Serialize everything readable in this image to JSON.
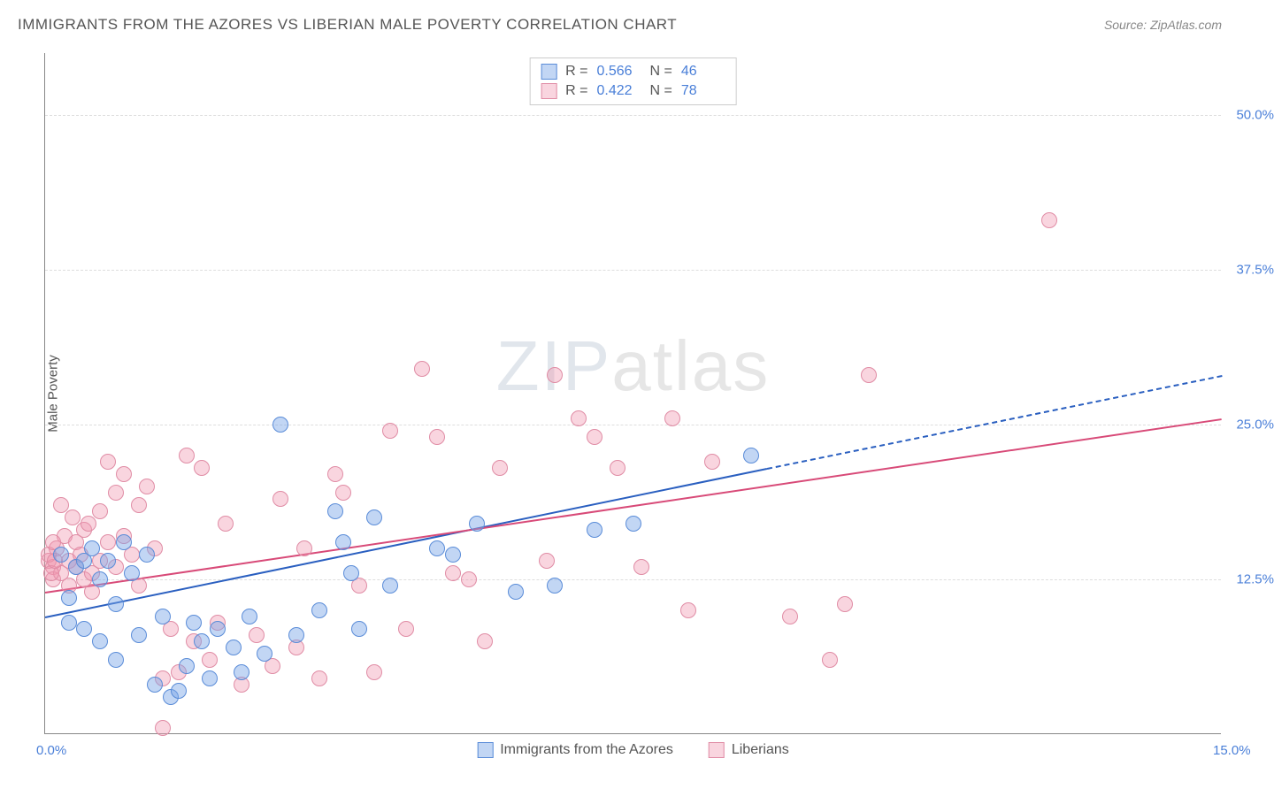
{
  "title": "IMMIGRANTS FROM THE AZORES VS LIBERIAN MALE POVERTY CORRELATION CHART",
  "source": "Source: ZipAtlas.com",
  "watermark_zip": "ZIP",
  "watermark_atlas": "atlas",
  "y_axis_label": "Male Poverty",
  "chart": {
    "type": "scatter",
    "xlim": [
      0,
      15
    ],
    "ylim": [
      0,
      55
    ],
    "x_ticks": [
      {
        "v": 0,
        "label": "0.0%"
      },
      {
        "v": 15,
        "label": "15.0%"
      }
    ],
    "y_ticks": [
      {
        "v": 12.5,
        "label": "12.5%"
      },
      {
        "v": 25.0,
        "label": "25.0%"
      },
      {
        "v": 37.5,
        "label": "37.5%"
      },
      {
        "v": 50.0,
        "label": "50.0%"
      }
    ],
    "background_color": "#ffffff",
    "grid_color": "#dddddd",
    "axis_color": "#888888",
    "tick_label_color": "#4a7fd8",
    "series": [
      {
        "name": "Immigrants from the Azores",
        "fill": "rgba(120,165,230,0.45)",
        "stroke": "#5a8cd8",
        "trend_color": "#2a5fc0",
        "R": "0.566",
        "N": "46",
        "marker_radius": 9,
        "trend": {
          "x1": 0,
          "y1": 9.5,
          "x2": 9.2,
          "y2": 21.5,
          "dash_to_x": 15,
          "dash_to_y": 29
        },
        "points": [
          [
            0.2,
            14.5
          ],
          [
            0.3,
            11.0
          ],
          [
            0.3,
            9.0
          ],
          [
            0.4,
            13.5
          ],
          [
            0.5,
            14.0
          ],
          [
            0.5,
            8.5
          ],
          [
            0.6,
            15.0
          ],
          [
            0.7,
            12.5
          ],
          [
            0.7,
            7.5
          ],
          [
            0.8,
            14.0
          ],
          [
            0.9,
            10.5
          ],
          [
            0.9,
            6.0
          ],
          [
            1.0,
            15.5
          ],
          [
            1.1,
            13.0
          ],
          [
            1.2,
            8.0
          ],
          [
            1.3,
            14.5
          ],
          [
            1.4,
            4.0
          ],
          [
            1.5,
            9.5
          ],
          [
            1.6,
            3.0
          ],
          [
            1.7,
            3.5
          ],
          [
            1.8,
            5.5
          ],
          [
            1.9,
            9.0
          ],
          [
            2.0,
            7.5
          ],
          [
            2.1,
            4.5
          ],
          [
            2.2,
            8.5
          ],
          [
            2.4,
            7.0
          ],
          [
            2.6,
            9.5
          ],
          [
            2.8,
            6.5
          ],
          [
            3.0,
            25.0
          ],
          [
            3.2,
            8.0
          ],
          [
            3.5,
            10.0
          ],
          [
            3.7,
            18.0
          ],
          [
            3.8,
            15.5
          ],
          [
            3.9,
            13.0
          ],
          [
            4.0,
            8.5
          ],
          [
            4.2,
            17.5
          ],
          [
            4.4,
            12.0
          ],
          [
            5.0,
            15.0
          ],
          [
            5.2,
            14.5
          ],
          [
            5.5,
            17.0
          ],
          [
            7.0,
            16.5
          ],
          [
            7.5,
            17.0
          ],
          [
            9.0,
            22.5
          ],
          [
            6.0,
            11.5
          ],
          [
            6.5,
            12.0
          ],
          [
            2.5,
            5.0
          ]
        ]
      },
      {
        "name": "Liberians",
        "fill": "rgba(240,150,175,0.40)",
        "stroke": "#e08ca5",
        "trend_color": "#d84a78",
        "R": "0.422",
        "N": "78",
        "marker_radius": 9,
        "trend": {
          "x1": 0,
          "y1": 11.5,
          "x2": 15,
          "y2": 25.5
        },
        "points": [
          [
            0.05,
            14.0
          ],
          [
            0.1,
            13.5
          ],
          [
            0.1,
            12.5
          ],
          [
            0.15,
            15.0
          ],
          [
            0.2,
            18.5
          ],
          [
            0.2,
            13.0
          ],
          [
            0.25,
            16.0
          ],
          [
            0.3,
            14.0
          ],
          [
            0.3,
            12.0
          ],
          [
            0.35,
            17.5
          ],
          [
            0.4,
            15.5
          ],
          [
            0.4,
            13.5
          ],
          [
            0.45,
            14.5
          ],
          [
            0.5,
            16.5
          ],
          [
            0.5,
            12.5
          ],
          [
            0.55,
            17.0
          ],
          [
            0.6,
            13.0
          ],
          [
            0.6,
            11.5
          ],
          [
            0.7,
            18.0
          ],
          [
            0.7,
            14.0
          ],
          [
            0.8,
            22.0
          ],
          [
            0.8,
            15.5
          ],
          [
            0.9,
            19.5
          ],
          [
            0.9,
            13.5
          ],
          [
            1.0,
            21.0
          ],
          [
            1.0,
            16.0
          ],
          [
            1.1,
            14.5
          ],
          [
            1.2,
            18.5
          ],
          [
            1.2,
            12.0
          ],
          [
            1.3,
            20.0
          ],
          [
            1.4,
            15.0
          ],
          [
            1.5,
            4.5
          ],
          [
            1.6,
            8.5
          ],
          [
            1.7,
            5.0
          ],
          [
            1.8,
            22.5
          ],
          [
            1.9,
            7.5
          ],
          [
            2.0,
            21.5
          ],
          [
            2.1,
            6.0
          ],
          [
            2.2,
            9.0
          ],
          [
            2.3,
            17.0
          ],
          [
            2.5,
            4.0
          ],
          [
            2.7,
            8.0
          ],
          [
            2.9,
            5.5
          ],
          [
            3.0,
            19.0
          ],
          [
            3.2,
            7.0
          ],
          [
            3.3,
            15.0
          ],
          [
            3.5,
            4.5
          ],
          [
            3.7,
            21.0
          ],
          [
            3.8,
            19.5
          ],
          [
            4.0,
            12.0
          ],
          [
            4.2,
            5.0
          ],
          [
            4.4,
            24.5
          ],
          [
            4.6,
            8.5
          ],
          [
            4.8,
            29.5
          ],
          [
            5.0,
            24.0
          ],
          [
            5.2,
            13.0
          ],
          [
            5.4,
            12.5
          ],
          [
            5.6,
            7.5
          ],
          [
            5.8,
            21.5
          ],
          [
            6.4,
            14.0
          ],
          [
            6.5,
            29.0
          ],
          [
            6.8,
            25.5
          ],
          [
            7.0,
            24.0
          ],
          [
            7.3,
            21.5
          ],
          [
            7.6,
            13.5
          ],
          [
            8.0,
            25.5
          ],
          [
            8.2,
            10.0
          ],
          [
            8.5,
            22.0
          ],
          [
            9.5,
            9.5
          ],
          [
            10.0,
            6.0
          ],
          [
            10.2,
            10.5
          ],
          [
            10.5,
            29.0
          ],
          [
            12.8,
            41.5
          ],
          [
            1.5,
            0.5
          ],
          [
            0.05,
            14.5
          ],
          [
            0.1,
            15.5
          ],
          [
            0.08,
            13.0
          ],
          [
            0.12,
            14.0
          ]
        ]
      }
    ]
  },
  "bottom_legend": [
    {
      "swatch_fill": "rgba(120,165,230,0.45)",
      "swatch_stroke": "#5a8cd8",
      "label": "Immigrants from the Azores"
    },
    {
      "swatch_fill": "rgba(240,150,175,0.40)",
      "swatch_stroke": "#e08ca5",
      "label": "Liberians"
    }
  ]
}
